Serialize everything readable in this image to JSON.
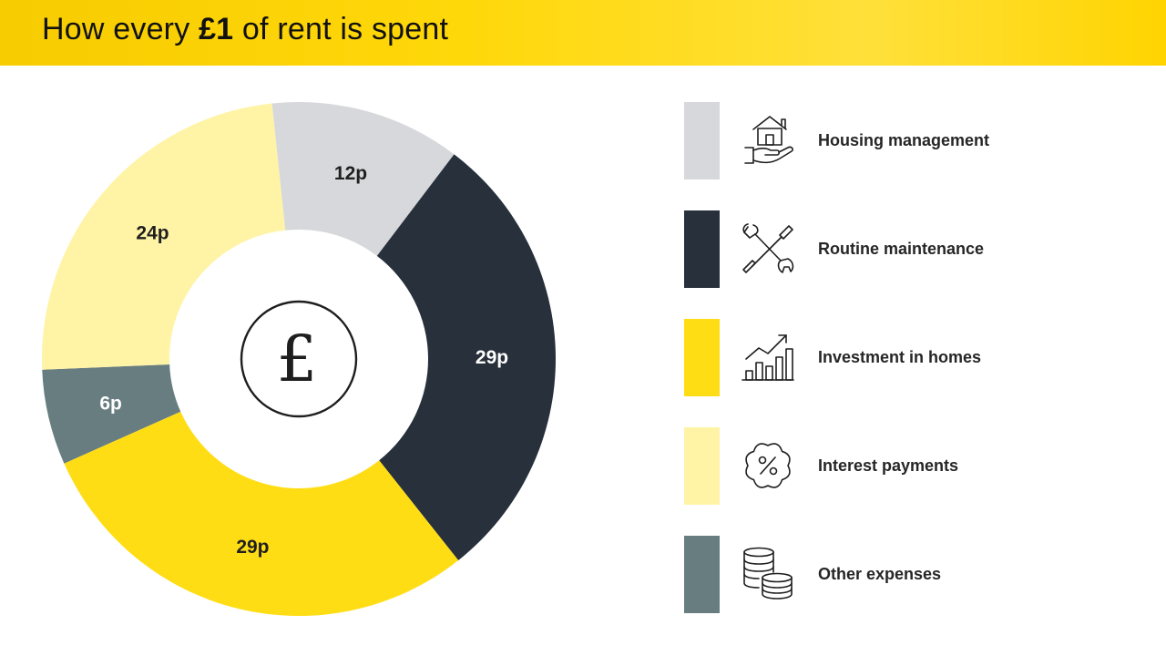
{
  "title": {
    "prefix": "How every ",
    "bold": "£1",
    "suffix": " of rent is spent"
  },
  "center_symbol": "£",
  "chart_data": {
    "type": "pie",
    "title": "How every £1 of rent is spent",
    "donut": true,
    "unit": "p",
    "slices": [
      {
        "name": "Housing management",
        "value": 12,
        "label": "12p",
        "color": "#d7d8dc",
        "label_color": "#1f1f1f",
        "icon": "house-hand-icon"
      },
      {
        "name": "Routine maintenance",
        "value": 29,
        "label": "29p",
        "color": "#27303b",
        "label_color": "#ffffff",
        "icon": "wrench-screwdriver-icon"
      },
      {
        "name": "Investment in homes",
        "value": 29,
        "label": "29p",
        "color": "#ffdd15",
        "label_color": "#1f1f1f",
        "icon": "growth-chart-icon"
      },
      {
        "name": "Other expenses",
        "value": 6,
        "label": "6p",
        "color": "#687d80",
        "label_color": "#ffffff",
        "icon": "coins-stack-icon"
      },
      {
        "name": "Interest payments",
        "value": 24,
        "label": "24p",
        "color": "#fff3a6",
        "label_color": "#1f1f1f",
        "icon": "percent-badge-icon"
      }
    ],
    "start_angle_deg": -6,
    "direction": "clockwise",
    "legend_placement": "right"
  },
  "legend": [
    {
      "label": "Housing management",
      "color": "#d7d8dc",
      "icon": "house-hand-icon"
    },
    {
      "label": "Routine maintenance",
      "color": "#27303b",
      "icon": "wrench-screwdriver-icon"
    },
    {
      "label": "Investment in homes",
      "color": "#ffdd15",
      "icon": "growth-chart-icon"
    },
    {
      "label": "Interest payments",
      "color": "#fff3a6",
      "icon": "percent-badge-icon"
    },
    {
      "label": "Other expenses",
      "color": "#687d80",
      "icon": "coins-stack-icon"
    }
  ]
}
